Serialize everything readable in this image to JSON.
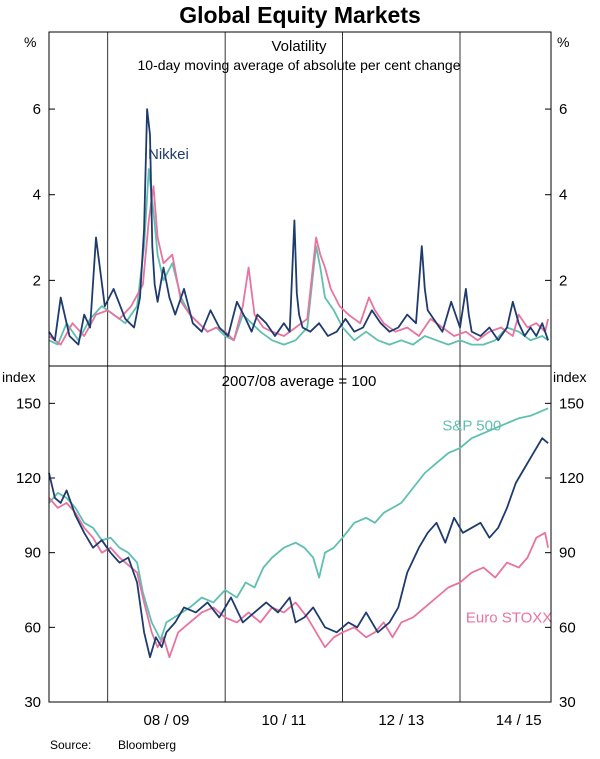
{
  "title": "Global Equity Markets",
  "source": {
    "label": "Source:",
    "value": "Bloomberg"
  },
  "colors": {
    "nikkei": "#1f3b6e",
    "sp500": "#5fbfb0",
    "euro": "#e8739f",
    "axis": "#000000"
  },
  "chart_data": [
    {
      "type": "line",
      "panel": "top",
      "title": "Volatility",
      "subtitle": "10-day moving average of absolute per cent change",
      "unit_left": "%",
      "unit_right": "%",
      "ylim": [
        0,
        7.8
      ],
      "yticks": [
        2,
        4,
        6
      ],
      "series": [
        {
          "name": "Nikkei",
          "color_key": "nikkei",
          "t": [
            2007.0,
            2007.1,
            2007.2,
            2007.35,
            2007.5,
            2007.6,
            2007.7,
            2007.8,
            2007.95,
            2008.1,
            2008.3,
            2008.45,
            2008.55,
            2008.62,
            2008.67,
            2008.72,
            2008.76,
            2008.8,
            2008.85,
            2008.95,
            2009.05,
            2009.15,
            2009.3,
            2009.45,
            2009.6,
            2009.75,
            2009.9,
            2010.05,
            2010.2,
            2010.35,
            2010.45,
            2010.55,
            2010.7,
            2010.85,
            2011.0,
            2011.1,
            2011.18,
            2011.22,
            2011.26,
            2011.32,
            2011.45,
            2011.6,
            2011.75,
            2011.9,
            2012.05,
            2012.2,
            2012.35,
            2012.5,
            2012.65,
            2012.8,
            2012.95,
            2013.1,
            2013.25,
            2013.35,
            2013.4,
            2013.45,
            2013.55,
            2013.7,
            2013.85,
            2014.0,
            2014.1,
            2014.15,
            2014.2,
            2014.35,
            2014.5,
            2014.65,
            2014.8,
            2014.9,
            2015.0,
            2015.1,
            2015.2,
            2015.3,
            2015.4,
            2015.5
          ],
          "v": [
            0.8,
            0.6,
            1.6,
            0.7,
            0.5,
            1.2,
            0.9,
            3.0,
            1.4,
            1.8,
            1.1,
            0.9,
            1.6,
            3.2,
            6.0,
            5.4,
            2.8,
            1.9,
            1.5,
            2.3,
            1.6,
            1.2,
            1.8,
            1.0,
            0.8,
            1.3,
            0.9,
            0.7,
            1.5,
            1.1,
            0.8,
            1.2,
            1.0,
            0.7,
            1.0,
            0.8,
            3.4,
            1.7,
            1.2,
            0.9,
            0.8,
            1.0,
            0.7,
            0.8,
            1.1,
            0.8,
            0.9,
            1.3,
            1.0,
            0.8,
            0.9,
            1.2,
            1.0,
            2.8,
            1.8,
            1.3,
            1.1,
            0.8,
            1.5,
            0.9,
            1.8,
            1.2,
            0.8,
            0.7,
            0.9,
            0.6,
            0.9,
            1.5,
            1.0,
            0.7,
            0.9,
            0.7,
            1.0,
            0.6
          ]
        },
        {
          "name": "S&P 500",
          "color_key": "sp500",
          "t": [
            2007.0,
            2007.15,
            2007.3,
            2007.5,
            2007.7,
            2007.9,
            2008.1,
            2008.3,
            2008.5,
            2008.62,
            2008.7,
            2008.78,
            2008.85,
            2008.95,
            2009.1,
            2009.25,
            2009.4,
            2009.55,
            2009.7,
            2009.85,
            2010.0,
            2010.15,
            2010.3,
            2010.45,
            2010.6,
            2010.8,
            2011.0,
            2011.2,
            2011.4,
            2011.55,
            2011.62,
            2011.7,
            2011.85,
            2012.0,
            2012.2,
            2012.4,
            2012.6,
            2012.8,
            2013.0,
            2013.2,
            2013.4,
            2013.6,
            2013.8,
            2014.0,
            2014.2,
            2014.4,
            2014.6,
            2014.8,
            2015.0,
            2015.2,
            2015.4,
            2015.5
          ],
          "v": [
            0.6,
            0.5,
            1.0,
            0.6,
            1.1,
            1.4,
            1.2,
            1.0,
            1.4,
            2.8,
            4.6,
            3.6,
            2.6,
            2.0,
            2.4,
            1.6,
            1.2,
            1.0,
            0.8,
            0.9,
            0.7,
            0.6,
            1.2,
            1.0,
            0.8,
            0.6,
            0.5,
            0.6,
            0.9,
            2.8,
            2.3,
            1.6,
            1.3,
            0.9,
            0.6,
            0.8,
            0.6,
            0.5,
            0.6,
            0.5,
            0.7,
            0.6,
            0.5,
            0.6,
            0.5,
            0.5,
            0.6,
            0.9,
            0.8,
            0.6,
            0.7,
            0.6
          ]
        },
        {
          "name": "Euro STOXX",
          "color_key": "euro",
          "t": [
            2007.0,
            2007.2,
            2007.4,
            2007.6,
            2007.8,
            2008.0,
            2008.2,
            2008.4,
            2008.6,
            2008.7,
            2008.78,
            2008.85,
            2008.95,
            2009.1,
            2009.25,
            2009.4,
            2009.55,
            2009.7,
            2009.85,
            2010.0,
            2010.15,
            2010.3,
            2010.4,
            2010.5,
            2010.65,
            2010.8,
            2011.0,
            2011.2,
            2011.4,
            2011.55,
            2011.62,
            2011.7,
            2011.8,
            2011.95,
            2012.1,
            2012.3,
            2012.45,
            2012.55,
            2012.7,
            2012.9,
            2013.1,
            2013.3,
            2013.5,
            2013.7,
            2013.9,
            2014.1,
            2014.3,
            2014.5,
            2014.7,
            2014.9,
            2015.0,
            2015.15,
            2015.3,
            2015.45,
            2015.5
          ],
          "v": [
            0.7,
            0.5,
            1.0,
            0.7,
            1.2,
            1.3,
            1.1,
            1.4,
            1.9,
            3.4,
            4.2,
            3.0,
            2.4,
            2.6,
            1.5,
            1.2,
            1.0,
            0.8,
            0.9,
            0.8,
            0.6,
            1.4,
            2.3,
            1.2,
            0.9,
            0.8,
            0.7,
            0.9,
            1.1,
            3.0,
            2.6,
            2.3,
            1.8,
            1.4,
            1.2,
            1.0,
            1.6,
            1.3,
            1.0,
            0.8,
            0.9,
            0.7,
            1.1,
            0.9,
            0.7,
            0.8,
            0.6,
            0.8,
            0.9,
            0.7,
            1.2,
            0.9,
            1.0,
            0.8,
            1.1
          ]
        }
      ]
    },
    {
      "type": "line",
      "panel": "bottom",
      "title": "2007/08 average = 100",
      "unit_left": "index",
      "unit_right": "index",
      "ylim": [
        30,
        165
      ],
      "yticks": [
        30,
        60,
        90,
        120,
        150
      ],
      "xlim": [
        2007.0,
        2015.55
      ],
      "xticks": [
        {
          "label": "08 / 09",
          "t": 2009.0
        },
        {
          "label": "10 / 11",
          "t": 2011.0
        },
        {
          "label": "12 / 13",
          "t": 2013.0
        },
        {
          "label": "14 / 15",
          "t": 2015.0
        }
      ],
      "xgrid": [
        2008.0,
        2010.0,
        2012.0,
        2014.0
      ],
      "series": [
        {
          "name": "S&P 500",
          "color_key": "sp500",
          "label_t": 2013.7,
          "label_v": 141,
          "t": [
            2007.0,
            2007.15,
            2007.3,
            2007.45,
            2007.6,
            2007.75,
            2007.9,
            2008.05,
            2008.2,
            2008.35,
            2008.5,
            2008.6,
            2008.75,
            2008.9,
            2009.0,
            2009.2,
            2009.4,
            2009.6,
            2009.8,
            2010.0,
            2010.2,
            2010.35,
            2010.5,
            2010.65,
            2010.8,
            2011.0,
            2011.2,
            2011.35,
            2011.5,
            2011.6,
            2011.7,
            2011.85,
            2012.0,
            2012.2,
            2012.4,
            2012.55,
            2012.7,
            2012.85,
            2013.0,
            2013.2,
            2013.4,
            2013.6,
            2013.8,
            2014.0,
            2014.2,
            2014.4,
            2014.6,
            2014.8,
            2015.0,
            2015.2,
            2015.4,
            2015.5
          ],
          "v": [
            110,
            114,
            112,
            108,
            102,
            100,
            95,
            96,
            92,
            90,
            86,
            74,
            62,
            55,
            62,
            65,
            68,
            72,
            70,
            75,
            72,
            78,
            76,
            84,
            88,
            92,
            94,
            92,
            88,
            80,
            90,
            92,
            96,
            102,
            104,
            102,
            106,
            108,
            110,
            116,
            122,
            126,
            130,
            132,
            136,
            138,
            140,
            142,
            144,
            145,
            147,
            148
          ]
        },
        {
          "name": "Nikkei",
          "color_key": "nikkei",
          "t": [
            2007.0,
            2007.1,
            2007.2,
            2007.3,
            2007.45,
            2007.6,
            2007.75,
            2007.9,
            2008.05,
            2008.2,
            2008.35,
            2008.5,
            2008.62,
            2008.72,
            2008.82,
            2008.92,
            2009.0,
            2009.15,
            2009.3,
            2009.5,
            2009.7,
            2009.9,
            2010.1,
            2010.3,
            2010.5,
            2010.7,
            2010.9,
            2011.1,
            2011.2,
            2011.35,
            2011.5,
            2011.7,
            2011.9,
            2012.1,
            2012.25,
            2012.4,
            2012.6,
            2012.8,
            2012.95,
            2013.1,
            2013.3,
            2013.45,
            2013.6,
            2013.75,
            2013.9,
            2014.05,
            2014.2,
            2014.35,
            2014.5,
            2014.65,
            2014.8,
            2014.95,
            2015.1,
            2015.25,
            2015.4,
            2015.5
          ],
          "v": [
            122,
            112,
            110,
            115,
            105,
            98,
            92,
            95,
            90,
            86,
            88,
            78,
            58,
            48,
            56,
            52,
            58,
            62,
            68,
            66,
            70,
            64,
            72,
            62,
            66,
            70,
            66,
            72,
            62,
            64,
            68,
            60,
            58,
            62,
            60,
            66,
            58,
            62,
            68,
            82,
            92,
            98,
            102,
            94,
            104,
            98,
            100,
            102,
            96,
            100,
            108,
            118,
            124,
            130,
            136,
            134
          ]
        },
        {
          "name": "Euro STOXX",
          "color_key": "euro",
          "label_t": 2014.1,
          "label_v": 64,
          "t": [
            2007.0,
            2007.15,
            2007.3,
            2007.45,
            2007.6,
            2007.75,
            2007.9,
            2008.05,
            2008.2,
            2008.35,
            2008.5,
            2008.62,
            2008.75,
            2008.85,
            2008.95,
            2009.05,
            2009.2,
            2009.4,
            2009.6,
            2009.8,
            2010.0,
            2010.2,
            2010.4,
            2010.6,
            2010.8,
            2011.0,
            2011.2,
            2011.4,
            2011.55,
            2011.7,
            2011.85,
            2012.0,
            2012.2,
            2012.4,
            2012.55,
            2012.7,
            2012.85,
            2013.0,
            2013.2,
            2013.4,
            2013.6,
            2013.8,
            2014.0,
            2014.2,
            2014.4,
            2014.6,
            2014.8,
            2015.0,
            2015.15,
            2015.3,
            2015.45,
            2015.5
          ],
          "v": [
            112,
            108,
            110,
            106,
            100,
            96,
            90,
            92,
            88,
            85,
            82,
            70,
            58,
            52,
            56,
            48,
            58,
            62,
            66,
            68,
            64,
            62,
            66,
            62,
            68,
            66,
            70,
            64,
            58,
            52,
            56,
            58,
            60,
            56,
            58,
            62,
            56,
            62,
            64,
            68,
            72,
            76,
            78,
            82,
            84,
            80,
            86,
            84,
            88,
            96,
            98,
            92
          ]
        }
      ]
    }
  ]
}
